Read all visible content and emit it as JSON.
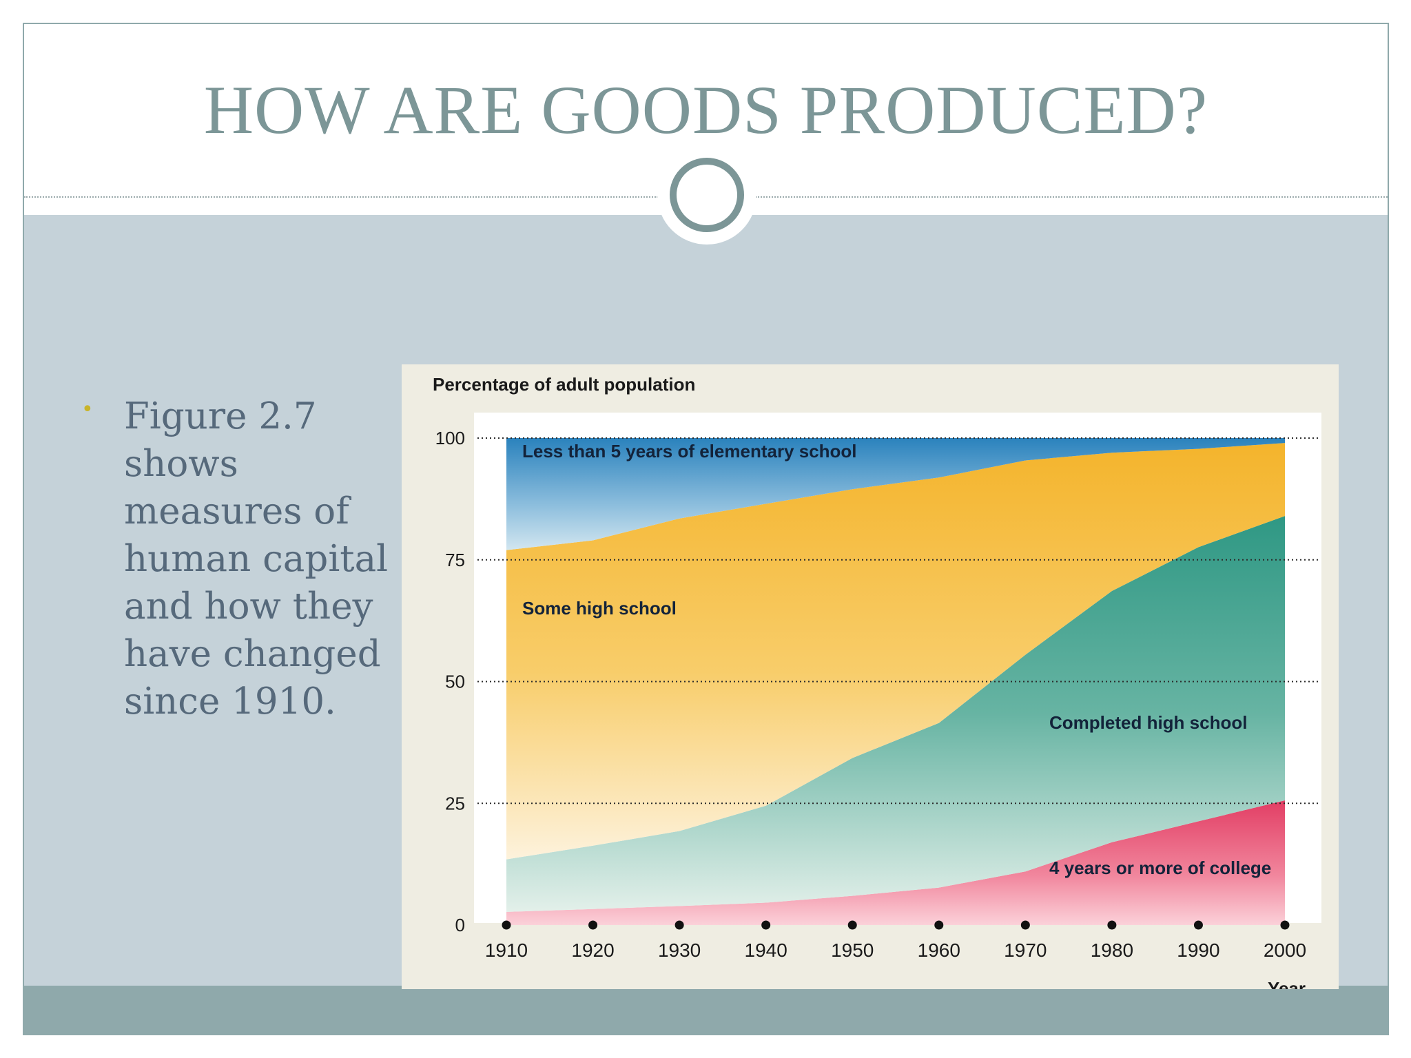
{
  "slide": {
    "title": "HOW ARE GOODS PRODUCED?",
    "bullet": "Figure 2.7 shows measures of human capital and how they have changed since 1910.",
    "colors": {
      "title": "#7c9697",
      "body_background": "#c5d2d9",
      "footer_band": "#8fa9ab",
      "bullet_marker": "#c9b42a",
      "bullet_text": "#56697b"
    }
  },
  "chart_data": {
    "type": "area",
    "title": "Percentage of adult population",
    "xlabel": "Year",
    "ylabel": "",
    "x": [
      1910,
      1920,
      1930,
      1940,
      1950,
      1960,
      1970,
      1980,
      1990,
      2000
    ],
    "x_ticks": [
      "1910",
      "1920",
      "1930",
      "1940",
      "1950",
      "1960",
      "1970",
      "1980",
      "1990",
      "2000"
    ],
    "y_ticks": [
      "0",
      "25",
      "50",
      "75",
      "100"
    ],
    "ylim": [
      0,
      100
    ],
    "grid": "dotted horizontal lines at 25, 50, 75, 100",
    "stacked": true,
    "series": [
      {
        "name": "4 years or more of college",
        "color": "#e64a6c",
        "values": [
          2.7,
          3.3,
          3.9,
          4.6,
          6.0,
          7.7,
          11.0,
          17.0,
          21.3,
          25.6
        ]
      },
      {
        "name": "Completed high school",
        "color": "#3e9e8a",
        "values": [
          10.8,
          13.0,
          15.4,
          19.9,
          28.3,
          33.8,
          44.5,
          51.6,
          56.3,
          58.4
        ]
      },
      {
        "name": "Some high school",
        "color": "#f5b52a",
        "values": [
          63.5,
          62.7,
          64.2,
          62.0,
          55.2,
          50.4,
          39.9,
          28.4,
          20.2,
          15.0
        ]
      },
      {
        "name": "Less than 5 years of elementary school",
        "color": "#2f86be",
        "values": [
          23.0,
          21.0,
          16.5,
          13.5,
          10.5,
          8.1,
          4.6,
          3.0,
          2.2,
          1.0
        ]
      }
    ]
  }
}
